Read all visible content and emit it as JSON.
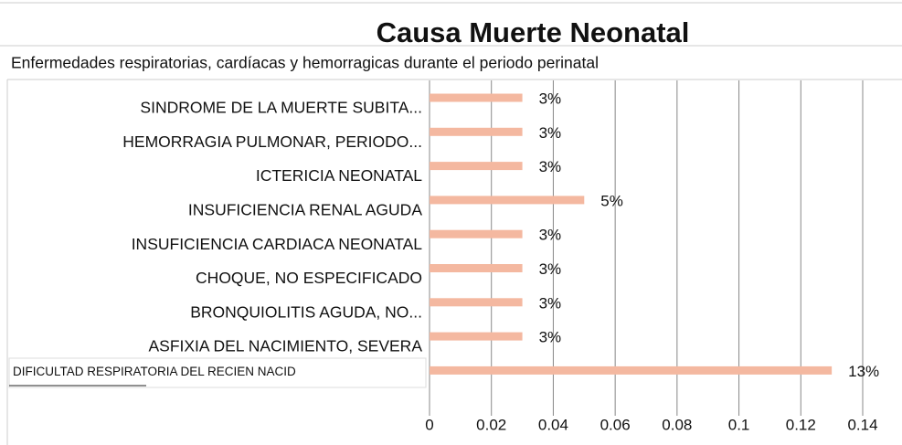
{
  "chart_data": {
    "type": "bar",
    "orientation": "horizontal",
    "title": "Causa Muerte Neonatal",
    "subtitle": "Enfermedades respiratorias, cardíacas y hemorragicas durante el periodo perinatal",
    "categories": [
      "SINDROME DE LA MUERTE SUBITA...",
      "HEMORRAGIA PULMONAR, PERIODO...",
      "ICTERICIA NEONATAL",
      "INSUFICIENCIA RENAL AGUDA",
      "INSUFICIENCIA CARDIACA NEONATAL",
      "CHOQUE, NO ESPECIFICADO",
      "BRONQUIOLITIS AGUDA, NO...",
      "ASFIXIA DEL NACIMIENTO, SEVERA",
      "DIFICULTAD RESPIRATORIA DEL RECIEN NACID"
    ],
    "values": [
      0.03,
      0.03,
      0.03,
      0.05,
      0.03,
      0.03,
      0.03,
      0.03,
      0.13
    ],
    "value_labels": [
      "3%",
      "3%",
      "3%",
      "5%",
      "3%",
      "3%",
      "3%",
      "3%",
      "13%"
    ],
    "color": "#f4b8a0",
    "xlim": [
      0,
      0.14
    ],
    "xticks": [
      0,
      0.02,
      0.04,
      0.06,
      0.08,
      0.1,
      0.12,
      0.14
    ],
    "grid": true
  }
}
